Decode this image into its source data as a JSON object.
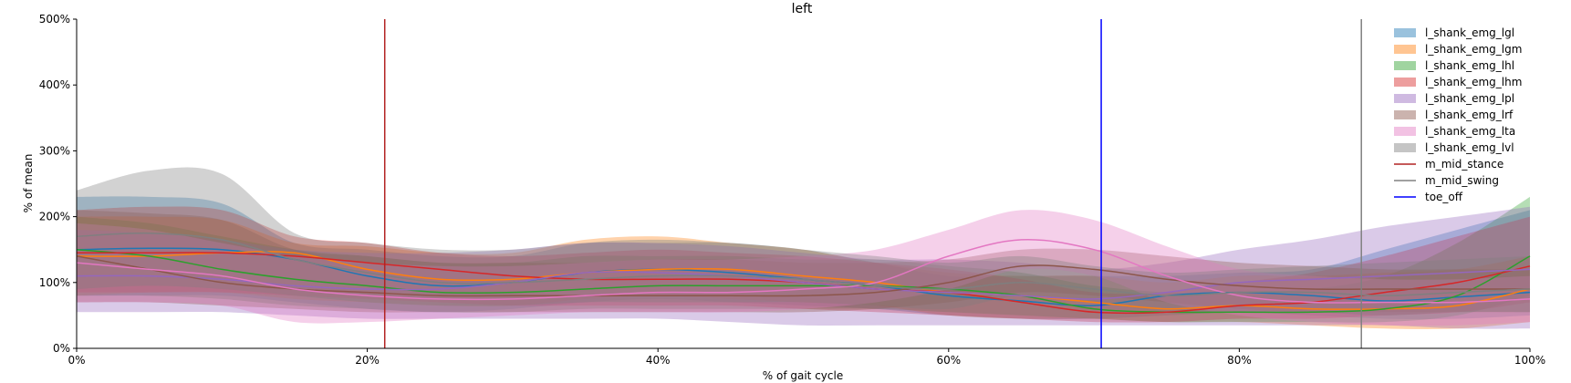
{
  "chart_data": {
    "type": "area",
    "title": "left",
    "xlabel": "% of gait cycle",
    "ylabel": "% of mean",
    "xlim": [
      0,
      100
    ],
    "ylim": [
      0,
      500
    ],
    "x_ticks": [
      0,
      20,
      40,
      60,
      80,
      100
    ],
    "x_tick_labels": [
      "0%",
      "20%",
      "40%",
      "60%",
      "80%",
      "100%"
    ],
    "y_ticks": [
      0,
      100,
      200,
      300,
      400,
      500
    ],
    "y_tick_labels": [
      "0%",
      "100%",
      "200%",
      "300%",
      "400%",
      "500%"
    ],
    "legend_position": "top-right",
    "x": [
      0,
      5,
      10,
      15,
      20,
      25,
      30,
      35,
      40,
      45,
      50,
      55,
      60,
      65,
      70,
      75,
      80,
      85,
      90,
      95,
      100
    ],
    "series": [
      {
        "name": "l_shank_emg_lgl",
        "color": "#1f77b4",
        "mean": [
          150,
          152,
          150,
          135,
          110,
          95,
          100,
          115,
          120,
          115,
          105,
          95,
          80,
          72,
          65,
          80,
          85,
          80,
          72,
          78,
          85
        ],
        "lower": [
          80,
          80,
          80,
          70,
          60,
          55,
          60,
          70,
          75,
          70,
          65,
          60,
          50,
          45,
          45,
          50,
          55,
          50,
          45,
          45,
          50
        ],
        "upper": [
          230,
          230,
          220,
          160,
          150,
          140,
          140,
          160,
          165,
          160,
          150,
          130,
          110,
          110,
          110,
          110,
          115,
          120,
          150,
          180,
          210
        ]
      },
      {
        "name": "l_shank_emg_lgm",
        "color": "#ff7f0e",
        "mean": [
          140,
          140,
          145,
          145,
          120,
          105,
          105,
          115,
          120,
          120,
          110,
          100,
          85,
          80,
          70,
          60,
          65,
          60,
          60,
          65,
          90
        ],
        "lower": [
          80,
          85,
          85,
          75,
          70,
          65,
          65,
          75,
          80,
          75,
          70,
          65,
          50,
          45,
          45,
          40,
          40,
          35,
          30,
          30,
          40
        ],
        "upper": [
          200,
          200,
          195,
          160,
          155,
          145,
          145,
          165,
          170,
          160,
          150,
          130,
          115,
          110,
          110,
          100,
          110,
          110,
          115,
          120,
          140
        ]
      },
      {
        "name": "l_shank_emg_lhl",
        "color": "#2ca02c",
        "mean": [
          150,
          140,
          120,
          105,
          95,
          85,
          85,
          90,
          95,
          95,
          95,
          95,
          90,
          80,
          60,
          55,
          55,
          55,
          60,
          80,
          140
        ],
        "lower": [
          80,
          80,
          75,
          65,
          60,
          55,
          55,
          60,
          60,
          60,
          60,
          60,
          55,
          50,
          45,
          40,
          40,
          40,
          40,
          50,
          80
        ],
        "upper": [
          200,
          190,
          170,
          150,
          140,
          130,
          130,
          140,
          140,
          140,
          135,
          135,
          125,
          115,
          95,
          85,
          85,
          90,
          110,
          160,
          230
        ]
      },
      {
        "name": "l_shank_emg_lhm",
        "color": "#d62728",
        "mean": [
          145,
          145,
          145,
          140,
          130,
          120,
          110,
          105,
          105,
          105,
          100,
          90,
          85,
          70,
          55,
          55,
          65,
          70,
          85,
          100,
          125
        ],
        "lower": [
          85,
          85,
          85,
          80,
          75,
          70,
          65,
          65,
          65,
          65,
          60,
          55,
          50,
          45,
          40,
          40,
          45,
          45,
          50,
          55,
          70
        ],
        "upper": [
          210,
          215,
          210,
          170,
          160,
          145,
          140,
          145,
          150,
          145,
          140,
          130,
          120,
          105,
          85,
          85,
          100,
          115,
          140,
          170,
          200
        ]
      },
      {
        "name": "l_shank_emg_lpl",
        "color": "#9467bd",
        "mean": [
          110,
          110,
          105,
          95,
          90,
          90,
          100,
          115,
          115,
          110,
          100,
          90,
          85,
          80,
          75,
          85,
          100,
          105,
          110,
          115,
          120
        ],
        "lower": [
          55,
          55,
          55,
          50,
          45,
          45,
          45,
          45,
          45,
          40,
          35,
          35,
          35,
          35,
          35,
          35,
          35,
          35,
          35,
          30,
          30
        ],
        "upper": [
          180,
          175,
          165,
          150,
          145,
          145,
          150,
          160,
          160,
          155,
          145,
          135,
          135,
          130,
          120,
          130,
          150,
          165,
          185,
          200,
          215
        ]
      },
      {
        "name": "l_shank_emg_lrf",
        "color": "#8c564b",
        "mean": [
          140,
          120,
          100,
          90,
          85,
          80,
          80,
          80,
          80,
          80,
          80,
          85,
          100,
          125,
          120,
          105,
          95,
          90,
          90,
          90,
          90
        ],
        "lower": [
          70,
          70,
          65,
          60,
          55,
          55,
          55,
          55,
          55,
          55,
          55,
          60,
          70,
          85,
          80,
          70,
          60,
          55,
          55,
          55,
          55
        ],
        "upper": [
          210,
          205,
          195,
          150,
          140,
          130,
          130,
          130,
          135,
          135,
          130,
          130,
          135,
          150,
          150,
          140,
          130,
          125,
          120,
          120,
          120
        ]
      },
      {
        "name": "l_shank_emg_lta",
        "color": "#e377c2",
        "mean": [
          130,
          120,
          110,
          90,
          80,
          75,
          75,
          80,
          85,
          85,
          90,
          100,
          140,
          165,
          150,
          110,
          80,
          70,
          70,
          70,
          75
        ],
        "lower": [
          70,
          70,
          65,
          40,
          40,
          45,
          50,
          55,
          55,
          55,
          60,
          70,
          90,
          120,
          110,
          70,
          50,
          40,
          35,
          35,
          40
        ],
        "upper": [
          190,
          180,
          160,
          140,
          130,
          125,
          125,
          130,
          135,
          135,
          140,
          150,
          180,
          210,
          195,
          155,
          120,
          110,
          105,
          105,
          110
        ]
      },
      {
        "name": "l_shank_emg_lvl",
        "color": "#7f7f7f",
        "mean": [
          170,
          175,
          165,
          135,
          115,
          100,
          100,
          105,
          110,
          110,
          105,
          95,
          90,
          100,
          90,
          80,
          85,
          85,
          80,
          85,
          90
        ],
        "lower": [
          90,
          95,
          90,
          80,
          70,
          65,
          65,
          70,
          70,
          70,
          70,
          65,
          60,
          80,
          70,
          55,
          55,
          55,
          50,
          55,
          55
        ],
        "upper": [
          240,
          270,
          265,
          175,
          160,
          150,
          150,
          160,
          160,
          160,
          150,
          140,
          130,
          140,
          125,
          115,
          120,
          125,
          130,
          135,
          140
        ]
      }
    ],
    "events": [
      {
        "name": "m_mid_stance",
        "x": 21.2,
        "color": "#b22222"
      },
      {
        "name": "m_mid_swing",
        "x": 88.4,
        "color": "#808080"
      },
      {
        "name": "toe_off",
        "x": 70.5,
        "color": "#0000ff"
      }
    ]
  }
}
